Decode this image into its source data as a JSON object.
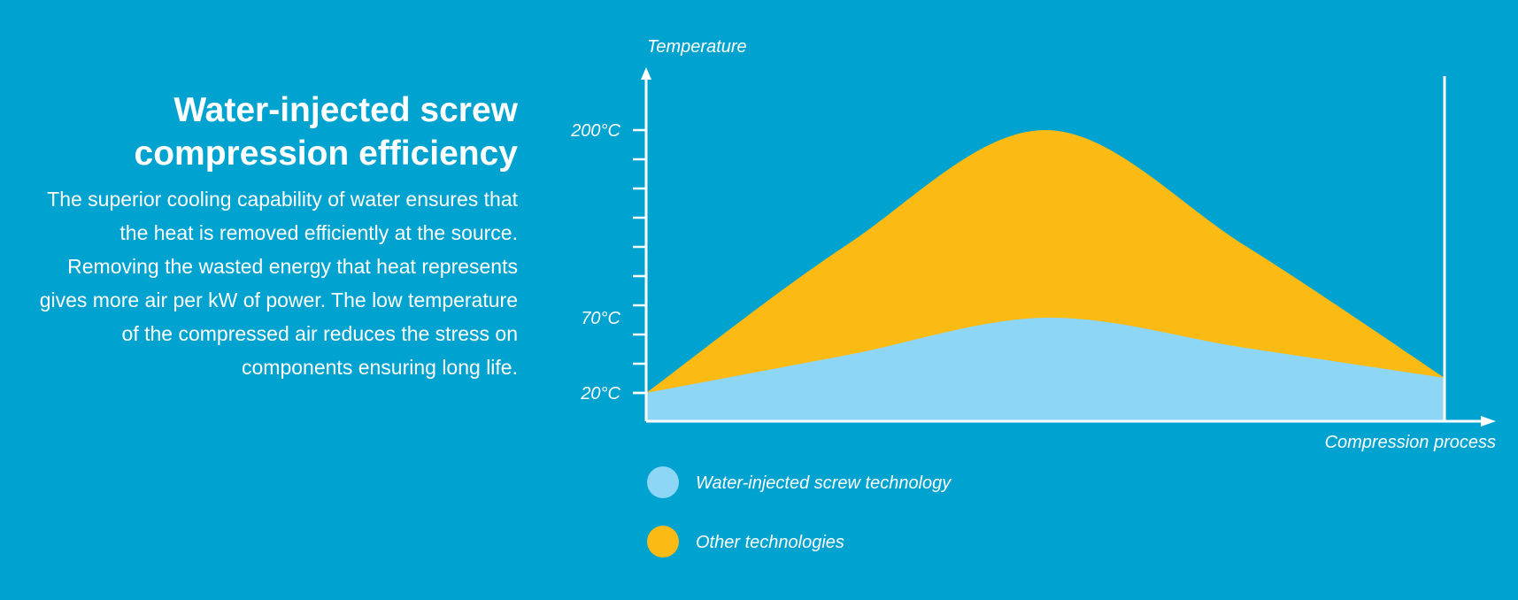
{
  "heading": "Water-injected screw compression efficiency",
  "description": "The superior cooling capability of water ensures that the heat is removed efficiently at the source. Removing the wasted energy that heat represents gives more air per kW of power. The low temperature of the compressed air reduces the stress on components ensuring long life.",
  "colors": {
    "background": "#00A3CF",
    "water_injected": "#8DD6F5",
    "other": "#FBBA14",
    "axis": "#FFFFFF"
  },
  "chart_data": {
    "type": "area",
    "xlabel": "Compression process",
    "ylabel": "Temperature",
    "y_ticks": [
      "20°C",
      "70°C",
      "200°C"
    ],
    "x": [
      0,
      0.25,
      0.5,
      0.75,
      1.0
    ],
    "series": [
      {
        "name": "Other technologies",
        "color": "#FBBA14",
        "values": [
          20,
          120,
          200,
          120,
          30
        ]
      },
      {
        "name": "Water-injected screw technology",
        "color": "#8DD6F5",
        "values": [
          20,
          45,
          70,
          50,
          30
        ]
      }
    ],
    "legend_placement": "bottom-left"
  }
}
